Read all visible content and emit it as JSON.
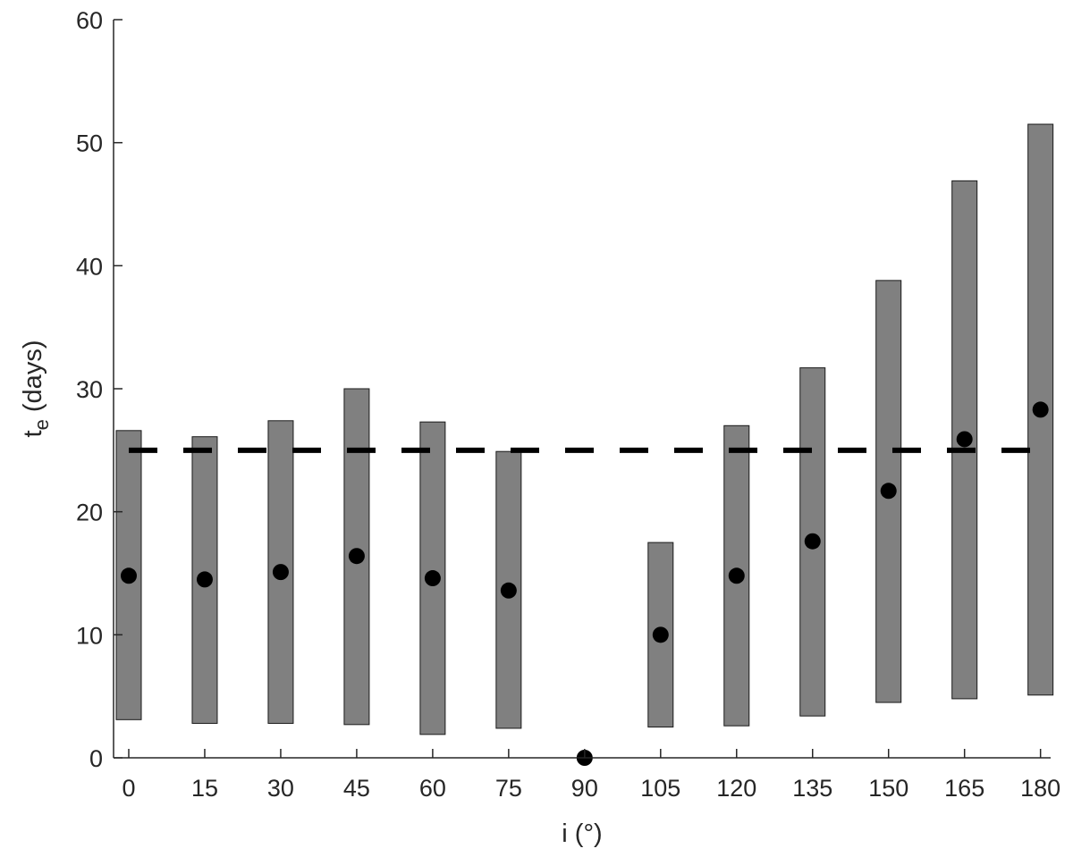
{
  "chart_data": {
    "type": "bar",
    "xlabel": "i (°)",
    "ylabel": {
      "main": "t",
      "subscript": "e",
      "suffix": " (days)"
    },
    "xlim": [
      -3,
      182
    ],
    "ylim": [
      0,
      60
    ],
    "x_ticks": [
      0,
      15,
      30,
      45,
      60,
      75,
      90,
      105,
      120,
      135,
      150,
      165,
      180
    ],
    "y_ticks": [
      0,
      10,
      20,
      30,
      40,
      50,
      60
    ],
    "grid": false,
    "bar_color": "#808080",
    "marker_color": "#000000",
    "ranges": [
      {
        "x": 0,
        "low": 3.1,
        "high": 26.6
      },
      {
        "x": 15,
        "low": 2.8,
        "high": 26.1
      },
      {
        "x": 30,
        "low": 2.8,
        "high": 27.4
      },
      {
        "x": 45,
        "low": 2.7,
        "high": 30.0
      },
      {
        "x": 60,
        "low": 1.9,
        "high": 27.3
      },
      {
        "x": 75,
        "low": 2.4,
        "high": 24.9
      },
      {
        "x": 105,
        "low": 2.5,
        "high": 17.5
      },
      {
        "x": 120,
        "low": 2.6,
        "high": 27.0
      },
      {
        "x": 135,
        "low": 3.4,
        "high": 31.7
      },
      {
        "x": 150,
        "low": 4.5,
        "high": 38.8
      },
      {
        "x": 165,
        "low": 4.8,
        "high": 46.9
      },
      {
        "x": 180,
        "low": 5.1,
        "high": 51.5
      }
    ],
    "points": [
      {
        "x": 0,
        "y": 14.8
      },
      {
        "x": 15,
        "y": 14.5
      },
      {
        "x": 30,
        "y": 15.1
      },
      {
        "x": 45,
        "y": 16.4
      },
      {
        "x": 60,
        "y": 14.6
      },
      {
        "x": 75,
        "y": 13.6
      },
      {
        "x": 90,
        "y": 0
      },
      {
        "x": 105,
        "y": 10.0
      },
      {
        "x": 120,
        "y": 14.8
      },
      {
        "x": 135,
        "y": 17.6
      },
      {
        "x": 150,
        "y": 21.7
      },
      {
        "x": 165,
        "y": 25.9
      },
      {
        "x": 180,
        "y": 28.3
      }
    ],
    "reference_line": {
      "y": 25,
      "x_from": 0,
      "x_to": 180,
      "style": "dashed"
    }
  }
}
